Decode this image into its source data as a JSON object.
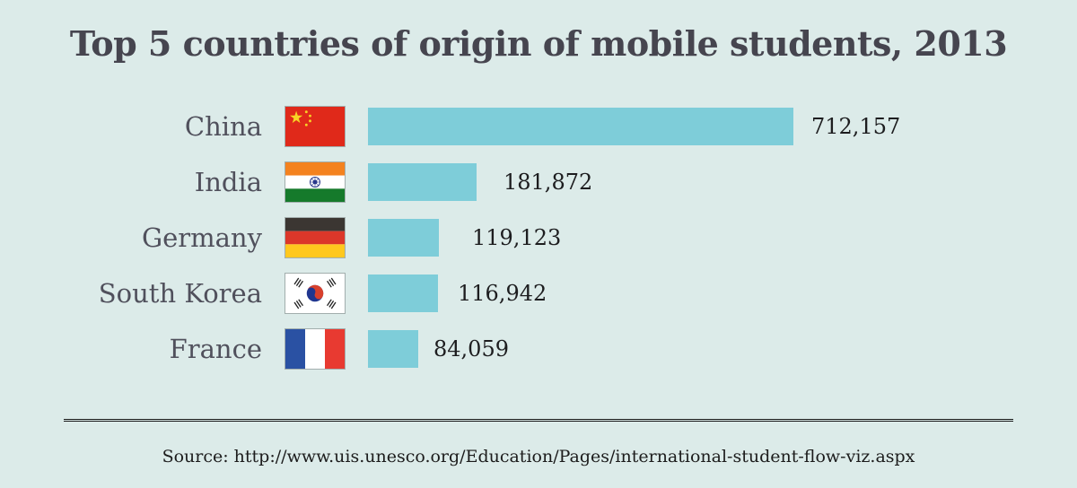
{
  "title": "Top 5 countries of origin of mobile students, 2013",
  "source_line": "Source: http://www.uis.unesco.org/Education/Pages/international-student-flow-viz.aspx",
  "colors": {
    "background": "#dcebe9",
    "bar": "#7ecdd9",
    "title_text": "#46454f",
    "country_label_text": "#50505c",
    "value_text": "#1d1d1f",
    "divider": "#161616"
  },
  "flags": {
    "0": "china-flag",
    "1": "india-flag",
    "2": "germany-flag",
    "3": "south-korea-flag",
    "4": "france-flag"
  },
  "chart_data": {
    "type": "bar",
    "orientation": "horizontal",
    "title": "Top 5 countries of origin of mobile students, 2013",
    "categories": [
      "China",
      "India",
      "Germany",
      "South Korea",
      "France"
    ],
    "values": [
      712157,
      181872,
      119123,
      116942,
      84059
    ],
    "value_labels": [
      "712,157",
      "181,872",
      "119,123",
      "116,942",
      "84,059"
    ],
    "xlabel": "",
    "ylabel": "",
    "xlim": [
      0,
      712157
    ],
    "grid": false,
    "legend": "none",
    "value_labels_position": "right-of-bar"
  }
}
